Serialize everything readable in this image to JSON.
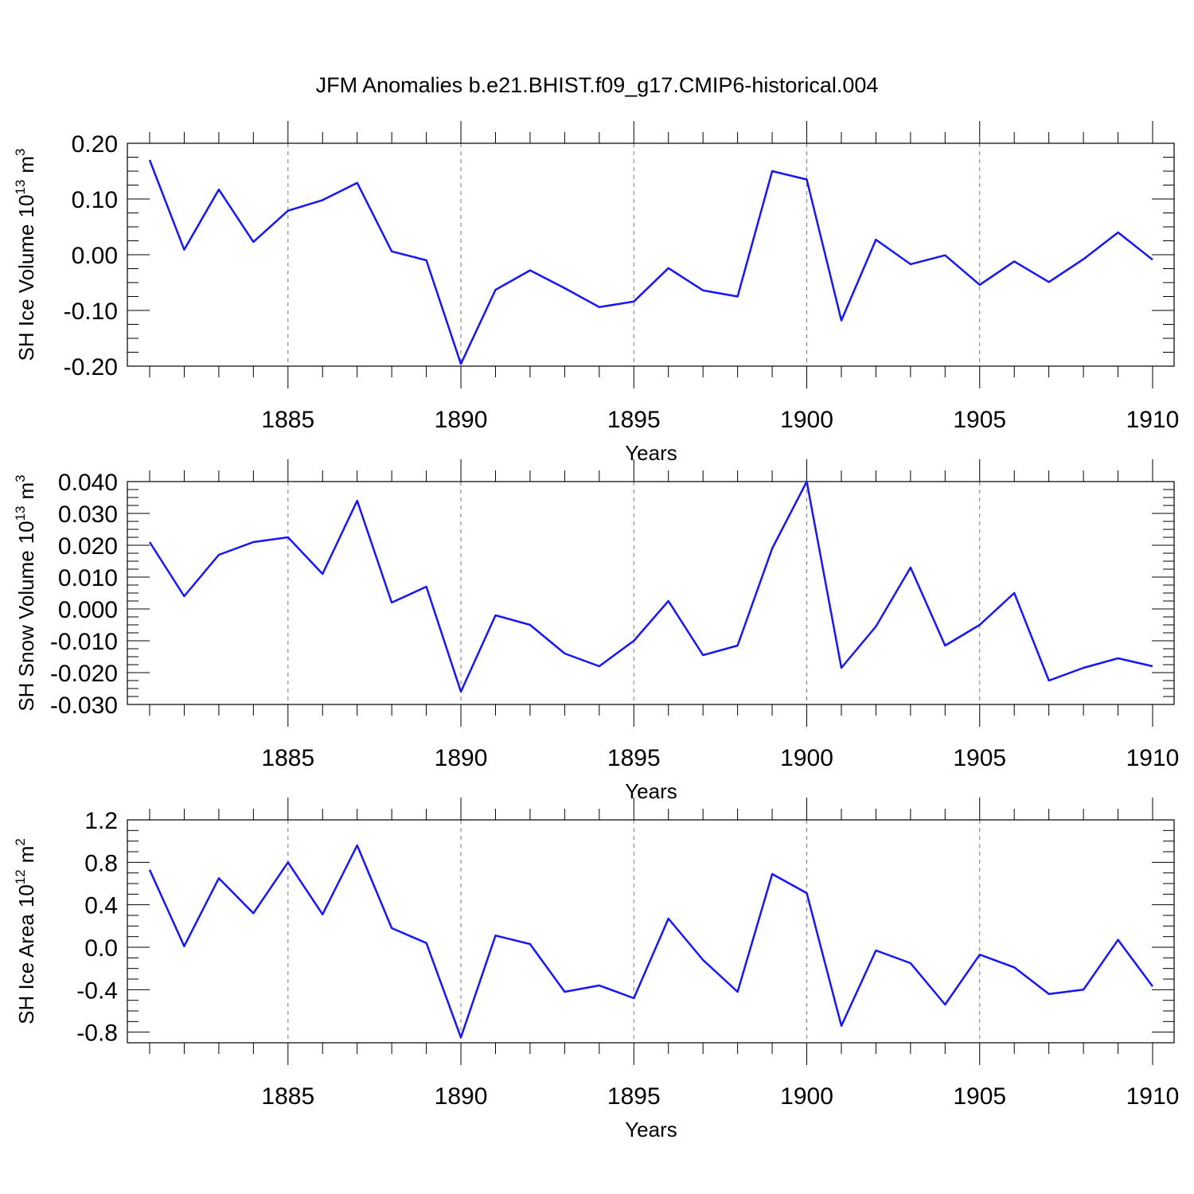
{
  "title": "JFM Anomalies b.e21.BHIST.f09_g17.CMIP6-historical.004",
  "line_color": "#1515ff",
  "chart_data": [
    {
      "type": "line",
      "title": "JFM Anomalies b.e21.BHIST.f09_g17.CMIP6-historical.004",
      "ylabel": "SH Ice Volume",
      "ylabel_unit_base": "10",
      "ylabel_unit_exp": "13",
      "ylabel_unit_suffix": "m",
      "ylabel_unit_suffix_exp": "3",
      "xlabel": "Years",
      "ylim": [
        -0.2,
        0.2
      ],
      "yticks": [
        -0.2,
        -0.1,
        0.0,
        0.1,
        0.2
      ],
      "ytick_labels": [
        "-0.20",
        "-0.10",
        "0.00",
        "0.10",
        "0.20"
      ],
      "xlim": [
        1881,
        1910
      ],
      "xticks": [
        1885,
        1890,
        1895,
        1900,
        1905,
        1910
      ],
      "xtick_labels": [
        "1885",
        "1890",
        "1895",
        "1900",
        "1905",
        "1910"
      ],
      "grid": "vertical dashed at major x ticks",
      "x": [
        1881,
        1882,
        1883,
        1884,
        1885,
        1886,
        1887,
        1888,
        1889,
        1890,
        1891,
        1892,
        1893,
        1894,
        1895,
        1896,
        1897,
        1898,
        1899,
        1900,
        1901,
        1902,
        1903,
        1904,
        1905,
        1906,
        1907,
        1908,
        1909,
        1910
      ],
      "series": [
        {
          "name": "SH Ice Volume",
          "values": [
            0.17,
            0.009,
            0.117,
            0.023,
            0.079,
            0.098,
            0.129,
            0.006,
            -0.01,
            -0.196,
            -0.063,
            -0.028,
            -0.06,
            -0.094,
            -0.084,
            -0.024,
            -0.064,
            -0.075,
            0.15,
            0.135,
            -0.118,
            0.027,
            -0.017,
            -0.001,
            -0.054,
            -0.012,
            -0.049,
            -0.008,
            0.04,
            -0.009
          ]
        }
      ]
    },
    {
      "type": "line",
      "ylabel": "SH Snow Volume",
      "ylabel_unit_base": "10",
      "ylabel_unit_exp": "13",
      "ylabel_unit_suffix": "m",
      "ylabel_unit_suffix_exp": "3",
      "xlabel": "Years",
      "ylim": [
        -0.03,
        0.04
      ],
      "yticks": [
        -0.03,
        -0.02,
        -0.01,
        0.0,
        0.01,
        0.02,
        0.03,
        0.04
      ],
      "ytick_labels": [
        "-0.030",
        "-0.020",
        "-0.010",
        "0.000",
        "0.010",
        "0.020",
        "0.030",
        "0.040"
      ],
      "xlim": [
        1881,
        1910
      ],
      "xticks": [
        1885,
        1890,
        1895,
        1900,
        1905,
        1910
      ],
      "xtick_labels": [
        "1885",
        "1890",
        "1895",
        "1900",
        "1905",
        "1910"
      ],
      "grid": "vertical dashed at major x ticks",
      "x": [
        1881,
        1882,
        1883,
        1884,
        1885,
        1886,
        1887,
        1888,
        1889,
        1890,
        1891,
        1892,
        1893,
        1894,
        1895,
        1896,
        1897,
        1898,
        1899,
        1900,
        1901,
        1902,
        1903,
        1904,
        1905,
        1906,
        1907,
        1908,
        1909,
        1910
      ],
      "series": [
        {
          "name": "SH Snow Volume",
          "values": [
            0.021,
            0.004,
            0.017,
            0.021,
            0.0225,
            0.011,
            0.034,
            0.002,
            0.007,
            -0.026,
            -0.002,
            -0.005,
            -0.014,
            -0.018,
            -0.01,
            0.0025,
            -0.0145,
            -0.0115,
            0.019,
            0.04,
            -0.0185,
            -0.0055,
            0.013,
            -0.0115,
            -0.005,
            0.005,
            -0.0225,
            -0.0185,
            -0.0155,
            -0.018
          ]
        }
      ]
    },
    {
      "type": "line",
      "ylabel": "SH Ice Area",
      "ylabel_unit_base": "10",
      "ylabel_unit_exp": "12",
      "ylabel_unit_suffix": "m",
      "ylabel_unit_suffix_exp": "2",
      "xlabel": "Years",
      "ylim": [
        -0.9,
        1.2
      ],
      "yticks": [
        -0.8,
        -0.4,
        0.0,
        0.4,
        0.8,
        1.2
      ],
      "ytick_labels": [
        "-0.8",
        "-0.4",
        "0.0",
        "0.4",
        "0.8",
        "1.2"
      ],
      "xlim": [
        1881,
        1910
      ],
      "xticks": [
        1885,
        1890,
        1895,
        1900,
        1905,
        1910
      ],
      "xtick_labels": [
        "1885",
        "1890",
        "1895",
        "1900",
        "1905",
        "1910"
      ],
      "grid": "vertical dashed at major x ticks",
      "x": [
        1881,
        1882,
        1883,
        1884,
        1885,
        1886,
        1887,
        1888,
        1889,
        1890,
        1891,
        1892,
        1893,
        1894,
        1895,
        1896,
        1897,
        1898,
        1899,
        1900,
        1901,
        1902,
        1903,
        1904,
        1905,
        1906,
        1907,
        1908,
        1909,
        1910
      ],
      "series": [
        {
          "name": "SH Ice Area",
          "values": [
            0.73,
            0.01,
            0.65,
            0.32,
            0.8,
            0.31,
            0.96,
            0.18,
            0.04,
            -0.85,
            0.11,
            0.03,
            -0.42,
            -0.36,
            -0.48,
            0.27,
            -0.12,
            -0.42,
            0.69,
            0.51,
            -0.74,
            -0.03,
            -0.15,
            -0.54,
            -0.07,
            -0.19,
            -0.44,
            -0.4,
            0.07,
            -0.37
          ]
        }
      ]
    }
  ]
}
